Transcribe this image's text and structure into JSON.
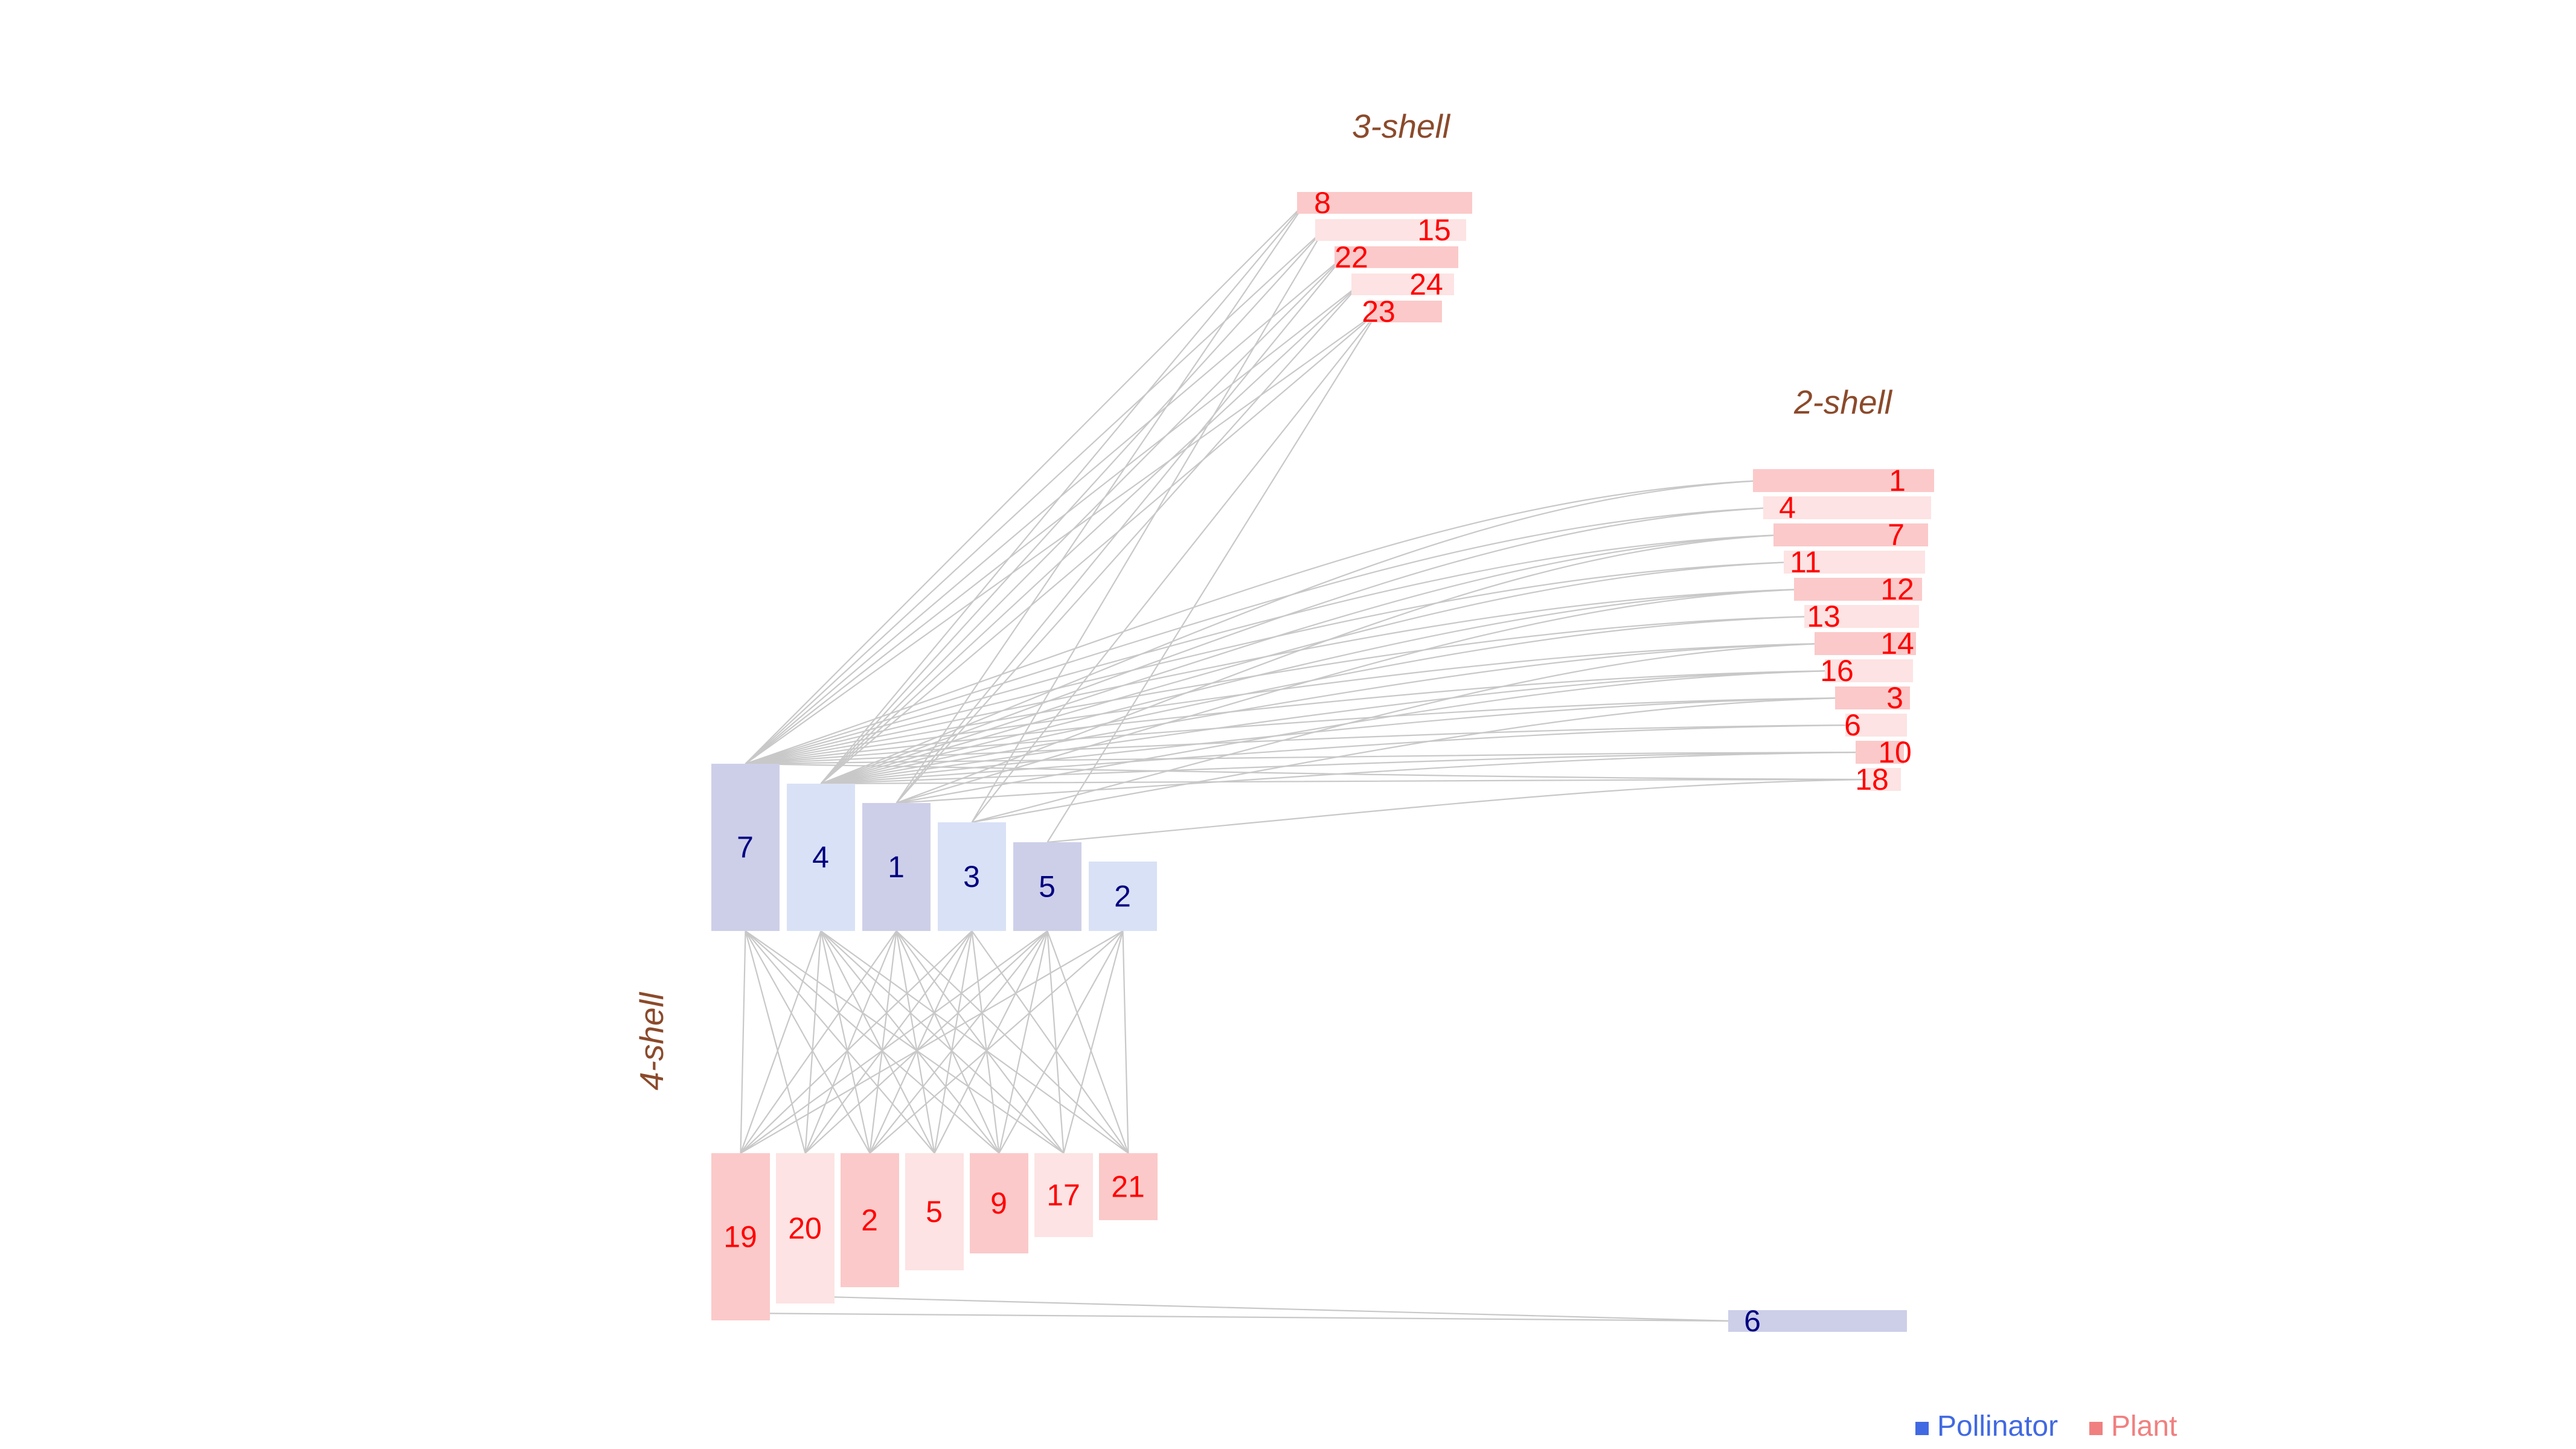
{
  "diagram": {
    "shell_labels": {
      "s3": "3-shell",
      "s2": "2-shell",
      "s4": "4-shell"
    },
    "legend": {
      "pollinator_label": "Pollinator",
      "plant_label": "Plant"
    },
    "colors": {
      "pollinator_text": "#000080",
      "pollinator_dark": "#cdcfe9",
      "pollinator_light": "#d9e1f6",
      "plant_text": "#ff0000",
      "plant_strong": "#fbc9c9",
      "plant_light": "#fde3e3",
      "shell_label": "#8b4a2b",
      "legend_pollinator": "#4169e1",
      "legend_plant": "#f08080",
      "link": "#c8c8c8"
    },
    "core_pollinators": [
      "7",
      "4",
      "1",
      "3",
      "5",
      "2"
    ],
    "core_plants": [
      "19",
      "20",
      "2",
      "5",
      "9",
      "17",
      "21"
    ],
    "shell3_plants": [
      "8",
      "15",
      "22",
      "24",
      "23"
    ],
    "shell2_plants": [
      "1",
      "4",
      "7",
      "11",
      "12",
      "13",
      "14",
      "16",
      "3",
      "6",
      "10",
      "18"
    ],
    "tail_pollinator": "6"
  }
}
